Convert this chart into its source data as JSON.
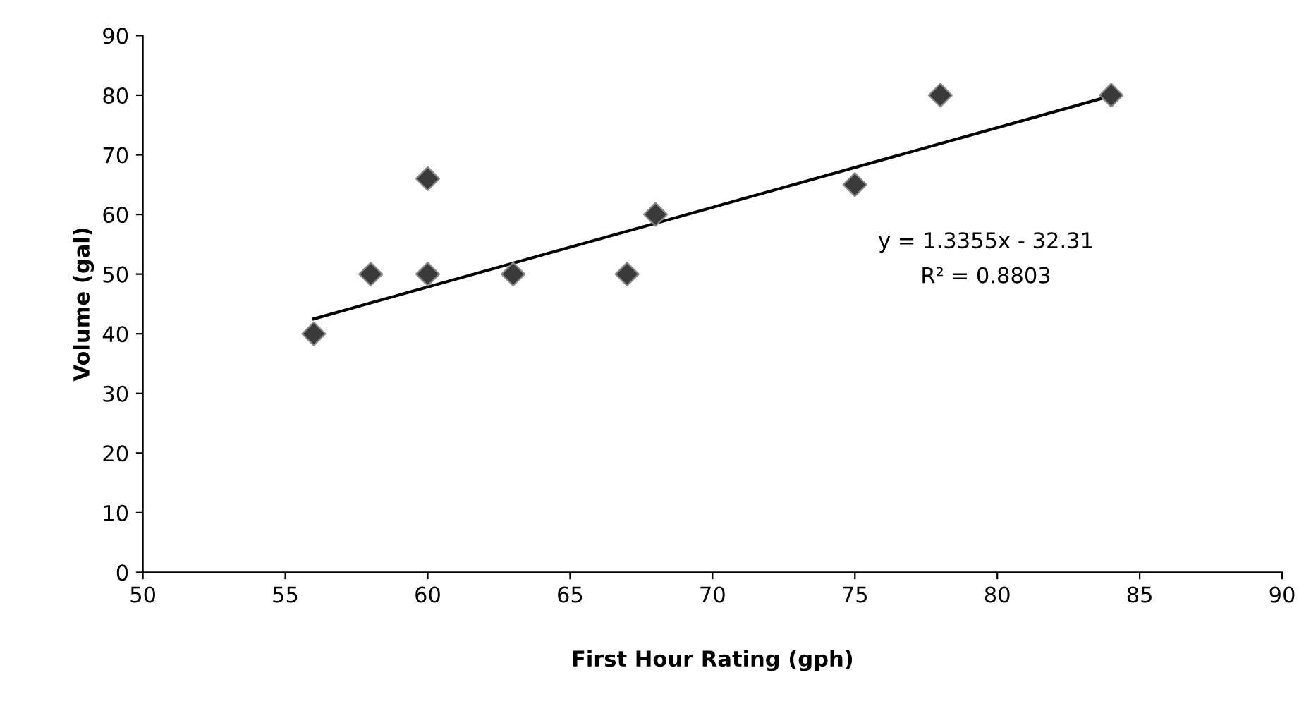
{
  "chart_data": {
    "type": "scatter",
    "xlabel": "First Hour Rating (gph)",
    "ylabel": "Volume (gal)",
    "xlim": [
      50,
      90
    ],
    "xticks": [
      50,
      55,
      60,
      65,
      70,
      75,
      80,
      85,
      90
    ],
    "ylim": [
      0,
      90
    ],
    "yticks": [
      0,
      10,
      20,
      30,
      40,
      50,
      60,
      70,
      80,
      90
    ],
    "grid": false,
    "legend": false,
    "series": [
      {
        "color": "#3a3a3a",
        "marker": "diamond",
        "x": [
          56,
          58,
          60,
          60,
          63,
          67,
          68,
          75,
          78,
          84
        ],
        "values": [
          40,
          50,
          66,
          50,
          50,
          50,
          60,
          65,
          80,
          80
        ]
      },
      {
        "type": "line",
        "color": "#000000",
        "marker": "none",
        "line_style": "solid",
        "x": [
          56,
          84
        ],
        "values": [
          42.5,
          79.9
        ]
      }
    ],
    "annotations": [
      "y = 1.3355x - 32.31",
      "R² = 0.8803"
    ]
  }
}
